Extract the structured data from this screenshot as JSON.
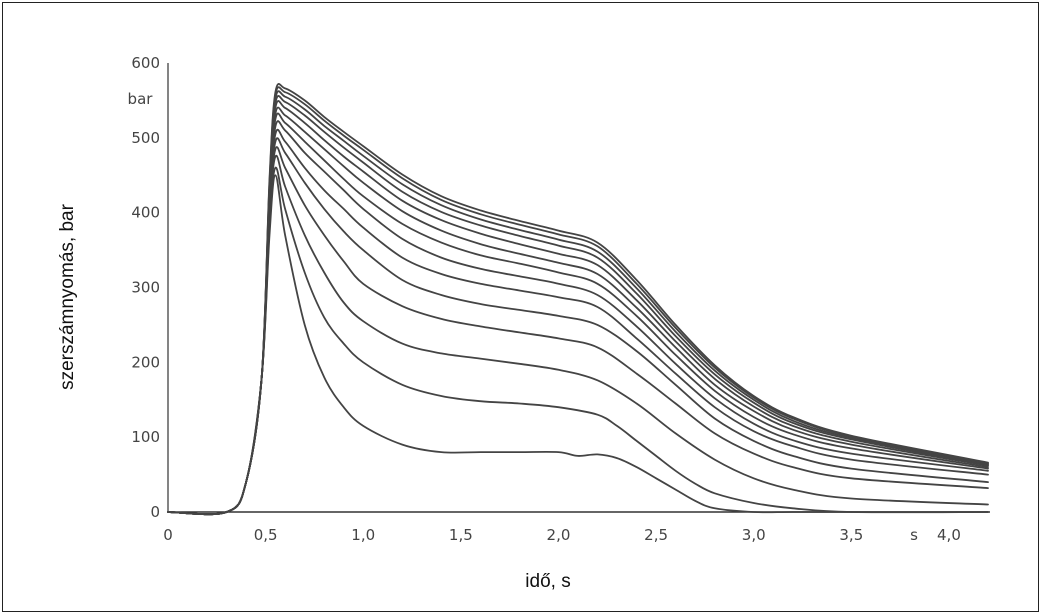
{
  "chart_data": {
    "type": "line",
    "xlabel": "idő, s",
    "ylabel": "szerszámnyomás, bar",
    "y_unit_label": "bar",
    "x_unit_label": "s",
    "xlim": [
      0,
      4.2
    ],
    "ylim": [
      0,
      600
    ],
    "x_ticks": [
      "0",
      "0,5",
      "1,0",
      "1,5",
      "2,0",
      "2,5",
      "3,0",
      "3,5",
      "4,0"
    ],
    "x_tick_values": [
      0,
      0.5,
      1.0,
      1.5,
      2.0,
      2.5,
      3.0,
      3.5,
      4.0
    ],
    "y_ticks": [
      "0",
      "100",
      "200",
      "300",
      "400",
      "500",
      "600"
    ],
    "y_tick_values": [
      0,
      100,
      200,
      300,
      400,
      500,
      600
    ],
    "grid": false,
    "line_color": "#444444",
    "series": [
      {
        "x": [
          0,
          0.3,
          0.4,
          0.48,
          0.52,
          0.55,
          0.6,
          0.7,
          0.8,
          0.9,
          1.0,
          1.2,
          1.4,
          1.6,
          1.8,
          2.0,
          2.1,
          2.2,
          2.3,
          2.4,
          2.5,
          2.6,
          2.7,
          2.8,
          3.0,
          3.2,
          3.5,
          4.2
        ],
        "y": [
          0,
          0,
          40,
          180,
          370,
          450,
          370,
          250,
          180,
          140,
          115,
          90,
          80,
          80,
          80,
          80,
          75,
          77,
          72,
          60,
          45,
          30,
          15,
          5,
          0,
          0,
          0,
          0
        ]
      },
      {
        "x": [
          0,
          0.3,
          0.4,
          0.48,
          0.52,
          0.55,
          0.6,
          0.7,
          0.8,
          0.9,
          1.0,
          1.2,
          1.4,
          1.6,
          1.8,
          2.0,
          2.2,
          2.3,
          2.4,
          2.5,
          2.6,
          2.7,
          2.8,
          3.0,
          3.2,
          3.5,
          4.2
        ],
        "y": [
          0,
          0,
          40,
          180,
          380,
          460,
          405,
          320,
          260,
          225,
          200,
          170,
          155,
          148,
          145,
          140,
          130,
          115,
          95,
          75,
          55,
          38,
          25,
          12,
          5,
          0,
          0
        ]
      },
      {
        "x": [
          0,
          0.3,
          0.4,
          0.48,
          0.52,
          0.55,
          0.6,
          0.7,
          0.8,
          0.9,
          1.0,
          1.2,
          1.4,
          1.6,
          1.8,
          2.0,
          2.2,
          2.4,
          2.6,
          2.8,
          3.0,
          3.2,
          3.5,
          4.2
        ],
        "y": [
          0,
          0,
          40,
          180,
          390,
          475,
          435,
          370,
          320,
          280,
          255,
          225,
          212,
          205,
          198,
          190,
          176,
          145,
          105,
          70,
          45,
          30,
          18,
          10
        ]
      },
      {
        "x": [
          0,
          0.3,
          0.4,
          0.48,
          0.52,
          0.55,
          0.6,
          0.7,
          0.8,
          0.9,
          1.0,
          1.2,
          1.4,
          1.6,
          1.8,
          2.0,
          2.2,
          2.4,
          2.6,
          2.8,
          3.0,
          3.2,
          3.5,
          4.2
        ],
        "y": [
          0,
          0,
          40,
          180,
          395,
          485,
          460,
          410,
          370,
          335,
          305,
          275,
          258,
          248,
          240,
          232,
          220,
          185,
          145,
          105,
          78,
          60,
          45,
          32
        ]
      },
      {
        "x": [
          0,
          0.3,
          0.4,
          0.48,
          0.52,
          0.55,
          0.6,
          0.7,
          0.8,
          0.9,
          1.0,
          1.2,
          1.4,
          1.6,
          1.8,
          2.0,
          2.2,
          2.4,
          2.6,
          2.8,
          3.0,
          3.2,
          3.5,
          4.2
        ],
        "y": [
          0,
          0,
          40,
          180,
          400,
          495,
          480,
          440,
          405,
          375,
          350,
          310,
          290,
          278,
          270,
          262,
          250,
          215,
          170,
          125,
          95,
          75,
          58,
          40
        ]
      },
      {
        "x": [
          0,
          0.3,
          0.4,
          0.48,
          0.52,
          0.55,
          0.6,
          0.7,
          0.8,
          0.9,
          1.0,
          1.2,
          1.4,
          1.6,
          1.8,
          2.0,
          2.2,
          2.4,
          2.6,
          2.8,
          3.0,
          3.2,
          3.5,
          4.2
        ],
        "y": [
          0,
          0,
          40,
          180,
          405,
          505,
          495,
          460,
          430,
          405,
          380,
          340,
          318,
          305,
          296,
          287,
          274,
          232,
          185,
          140,
          108,
          88,
          70,
          50
        ]
      },
      {
        "x": [
          0,
          0.3,
          0.4,
          0.48,
          0.52,
          0.55,
          0.6,
          0.7,
          0.8,
          0.9,
          1.0,
          1.2,
          1.4,
          1.6,
          1.8,
          2.0,
          2.2,
          2.4,
          2.6,
          2.8,
          3.0,
          3.2,
          3.5,
          4.2
        ],
        "y": [
          0,
          0,
          40,
          180,
          410,
          515,
          510,
          480,
          455,
          430,
          405,
          365,
          340,
          325,
          315,
          305,
          290,
          248,
          198,
          152,
          118,
          96,
          78,
          55
        ]
      },
      {
        "x": [
          0,
          0.3,
          0.4,
          0.48,
          0.52,
          0.55,
          0.6,
          0.7,
          0.8,
          0.9,
          1.0,
          1.2,
          1.4,
          1.6,
          1.8,
          2.0,
          2.2,
          2.4,
          2.6,
          2.8,
          3.0,
          3.2,
          3.5,
          4.2
        ],
        "y": [
          0,
          0,
          40,
          180,
          415,
          525,
          520,
          495,
          470,
          445,
          422,
          385,
          360,
          343,
          332,
          320,
          305,
          262,
          210,
          162,
          127,
          104,
          85,
          58
        ]
      },
      {
        "x": [
          0,
          0.3,
          0.4,
          0.48,
          0.52,
          0.55,
          0.6,
          0.7,
          0.8,
          0.9,
          1.0,
          1.2,
          1.4,
          1.6,
          1.8,
          2.0,
          2.2,
          2.4,
          2.6,
          2.8,
          3.0,
          3.2,
          3.5,
          4.2
        ],
        "y": [
          0,
          0,
          40,
          180,
          420,
          532,
          530,
          508,
          485,
          462,
          440,
          402,
          376,
          358,
          345,
          333,
          318,
          273,
          220,
          170,
          135,
          110,
          90,
          60
        ]
      },
      {
        "x": [
          0,
          0.3,
          0.4,
          0.48,
          0.52,
          0.55,
          0.6,
          0.7,
          0.8,
          0.9,
          1.0,
          1.2,
          1.4,
          1.6,
          1.8,
          2.0,
          2.2,
          2.4,
          2.6,
          2.8,
          3.0,
          3.2,
          3.5,
          4.2
        ],
        "y": [
          0,
          0,
          40,
          180,
          425,
          540,
          540,
          520,
          497,
          475,
          455,
          416,
          390,
          372,
          358,
          345,
          330,
          283,
          228,
          178,
          141,
          115,
          94,
          62
        ]
      },
      {
        "x": [
          0,
          0.3,
          0.4,
          0.48,
          0.52,
          0.55,
          0.6,
          0.7,
          0.8,
          0.9,
          1.0,
          1.2,
          1.4,
          1.6,
          1.8,
          2.0,
          2.2,
          2.4,
          2.6,
          2.8,
          3.0,
          3.2,
          3.5,
          4.2
        ],
        "y": [
          0,
          0,
          40,
          180,
          430,
          546,
          548,
          530,
          508,
          487,
          467,
          428,
          401,
          383,
          369,
          356,
          340,
          292,
          235,
          184,
          146,
          119,
          97,
          63
        ]
      },
      {
        "x": [
          0,
          0.3,
          0.4,
          0.48,
          0.52,
          0.55,
          0.6,
          0.7,
          0.8,
          0.9,
          1.0,
          1.2,
          1.4,
          1.6,
          1.8,
          2.0,
          2.2,
          2.4,
          2.6,
          2.8,
          3.0,
          3.2,
          3.5,
          4.2
        ],
        "y": [
          0,
          0,
          40,
          180,
          435,
          552,
          555,
          538,
          516,
          496,
          476,
          438,
          410,
          391,
          377,
          364,
          348,
          299,
          241,
          189,
          150,
          122,
          99,
          64
        ]
      },
      {
        "x": [
          0,
          0.3,
          0.4,
          0.48,
          0.52,
          0.55,
          0.6,
          0.7,
          0.8,
          0.9,
          1.0,
          1.2,
          1.4,
          1.6,
          1.8,
          2.0,
          2.2,
          2.4,
          2.6,
          2.8,
          3.0,
          3.2,
          3.5,
          4.2
        ],
        "y": [
          0,
          0,
          40,
          180,
          440,
          557,
          561,
          545,
          523,
          503,
          484,
          446,
          417,
          398,
          384,
          371,
          355,
          305,
          246,
          193,
          153,
          125,
          101,
          65
        ]
      },
      {
        "x": [
          0,
          0.3,
          0.4,
          0.48,
          0.52,
          0.55,
          0.6,
          0.7,
          0.8,
          0.9,
          1.0,
          1.2,
          1.4,
          1.6,
          1.8,
          2.0,
          2.2,
          2.4,
          2.6,
          2.8,
          3.0,
          3.2,
          3.5,
          4.2
        ],
        "y": [
          0,
          0,
          40,
          180,
          445,
          561,
          566,
          550,
          528,
          508,
          489,
          451,
          422,
          403,
          389,
          376,
          360,
          310,
          250,
          196,
          155,
          127,
          102,
          66
        ]
      }
    ]
  }
}
